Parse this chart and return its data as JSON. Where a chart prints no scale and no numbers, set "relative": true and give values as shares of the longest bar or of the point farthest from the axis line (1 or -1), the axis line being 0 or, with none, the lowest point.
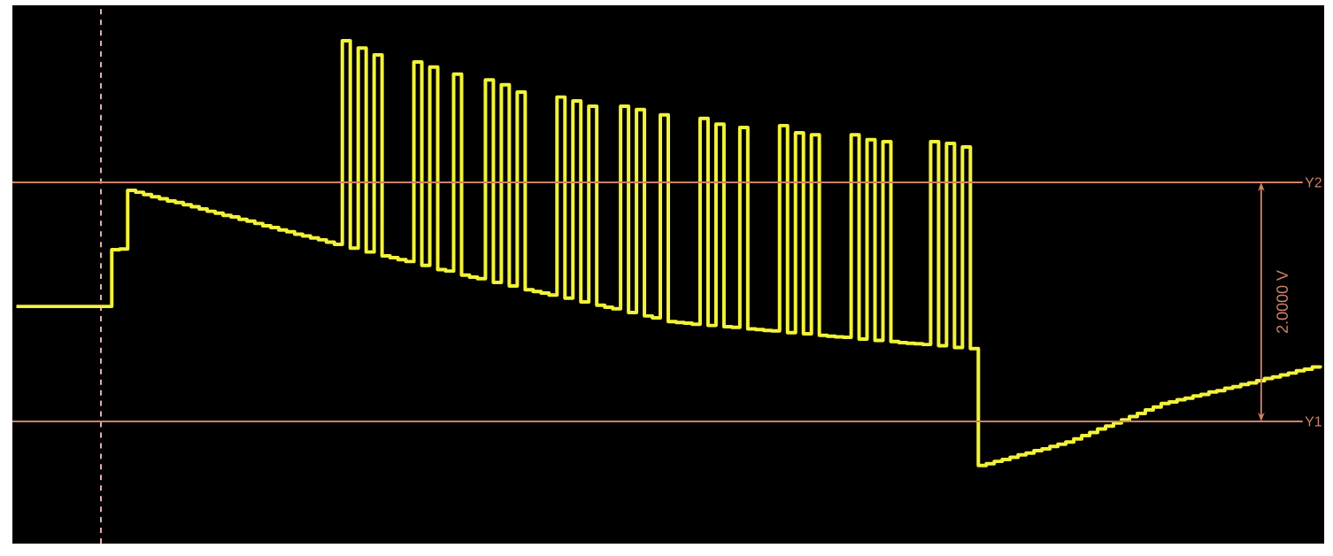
{
  "chart_data": {
    "type": "step",
    "relative": true,
    "categories": [
      null,
      null,
      null,
      null,
      null,
      null,
      null,
      null,
      null,
      null,
      null,
      null,
      null,
      null,
      null,
      null,
      null,
      null,
      null,
      null,
      null,
      null,
      null,
      null,
      null,
      null,
      null,
      null,
      null,
      null,
      null,
      null,
      null,
      null,
      null,
      null,
      null,
      null,
      null,
      null,
      null,
      null,
      null,
      null,
      null,
      null,
      null,
      null,
      null,
      null,
      null,
      null,
      null,
      null,
      null,
      null,
      null,
      null,
      null,
      null,
      null,
      null,
      null,
      null,
      null,
      null,
      null,
      null,
      null,
      null,
      null,
      null,
      null,
      null,
      null,
      null,
      null,
      null,
      null,
      null,
      null,
      null,
      null,
      null,
      null,
      null,
      null,
      null,
      null,
      null,
      null,
      null,
      null,
      null,
      null,
      null,
      null,
      null,
      null,
      null,
      null,
      null,
      null,
      null,
      null,
      null,
      null,
      null,
      null,
      null,
      null,
      null,
      null,
      null,
      null,
      null,
      null,
      null,
      null,
      null,
      null,
      null,
      null,
      null,
      null,
      null,
      null,
      null,
      null,
      null,
      null,
      null,
      null,
      null,
      null,
      null,
      null,
      null,
      null,
      null,
      null,
      null,
      null,
      null,
      null,
      null,
      null,
      null,
      null,
      null,
      null,
      null,
      null,
      null,
      null,
      null,
      null,
      null,
      null,
      null,
      null,
      null,
      null,
      null,
      null
    ],
    "series": [
      {
        "color": "#f2f23a",
        "values": [
          0.302,
          0.302,
          0.302,
          0.302,
          0.302,
          0.302,
          0.302,
          0.302,
          0.302,
          0.302,
          0.302,
          0.302,
          0.451,
          0.453,
          0.607,
          0.602,
          0.596,
          0.59,
          0.585,
          0.579,
          0.575,
          0.569,
          0.564,
          0.558,
          0.552,
          0.547,
          0.541,
          0.537,
          0.531,
          0.526,
          0.52,
          0.514,
          0.509,
          0.503,
          0.498,
          0.492,
          0.487,
          0.482,
          0.477,
          0.471,
          0.465,
          1.0,
          0.455,
          0.981,
          0.445,
          0.963,
          0.435,
          0.43,
          0.425,
          0.42,
          0.944,
          0.41,
          0.931,
          0.399,
          0.395,
          0.912,
          0.384,
          0.379,
          0.375,
          0.897,
          0.365,
          0.884,
          0.356,
          0.865,
          0.346,
          0.341,
          0.337,
          0.332,
          0.852,
          0.324,
          0.842,
          0.314,
          0.828,
          0.305,
          0.3,
          0.296,
          0.828,
          0.286,
          0.819,
          0.277,
          0.272,
          0.805,
          0.262,
          0.26,
          0.258,
          0.255,
          0.796,
          0.252,
          0.781,
          0.249,
          0.247,
          0.772,
          0.243,
          0.241,
          0.239,
          0.238,
          0.777,
          0.233,
          0.758,
          0.23,
          0.753,
          0.226,
          0.224,
          0.222,
          0.221,
          0.753,
          0.216,
          0.74,
          0.213,
          0.735,
          0.21,
          0.207,
          0.205,
          0.204,
          0.202,
          0.735,
          0.199,
          0.73,
          0.194,
          0.721,
          0.191,
          -0.116,
          -0.111,
          -0.105,
          -0.1,
          -0.094,
          -0.088,
          -0.083,
          -0.077,
          -0.072,
          -0.066,
          -0.06,
          -0.054,
          -0.046,
          -0.037,
          -0.029,
          -0.02,
          -0.012,
          -0.004,
          0.004,
          0.013,
          0.021,
          0.03,
          0.038,
          0.047,
          0.051,
          0.057,
          0.061,
          0.067,
          0.071,
          0.077,
          0.081,
          0.087,
          0.091,
          0.097,
          0.101,
          0.107,
          0.113,
          0.117,
          0.122,
          0.127,
          0.133,
          0.137,
          0.143,
          0.147
        ]
      }
    ],
    "marker": "none",
    "line_style": "solid",
    "ref_lines": [
      {
        "axis": "y",
        "value": 0.628,
        "label": "Y2",
        "color": "#d0826a"
      },
      {
        "axis": "y",
        "value": 0,
        "label": "Y1",
        "color": "#d0826a"
      }
    ],
    "annotations": [
      "2.0000 V"
    ]
  }
}
